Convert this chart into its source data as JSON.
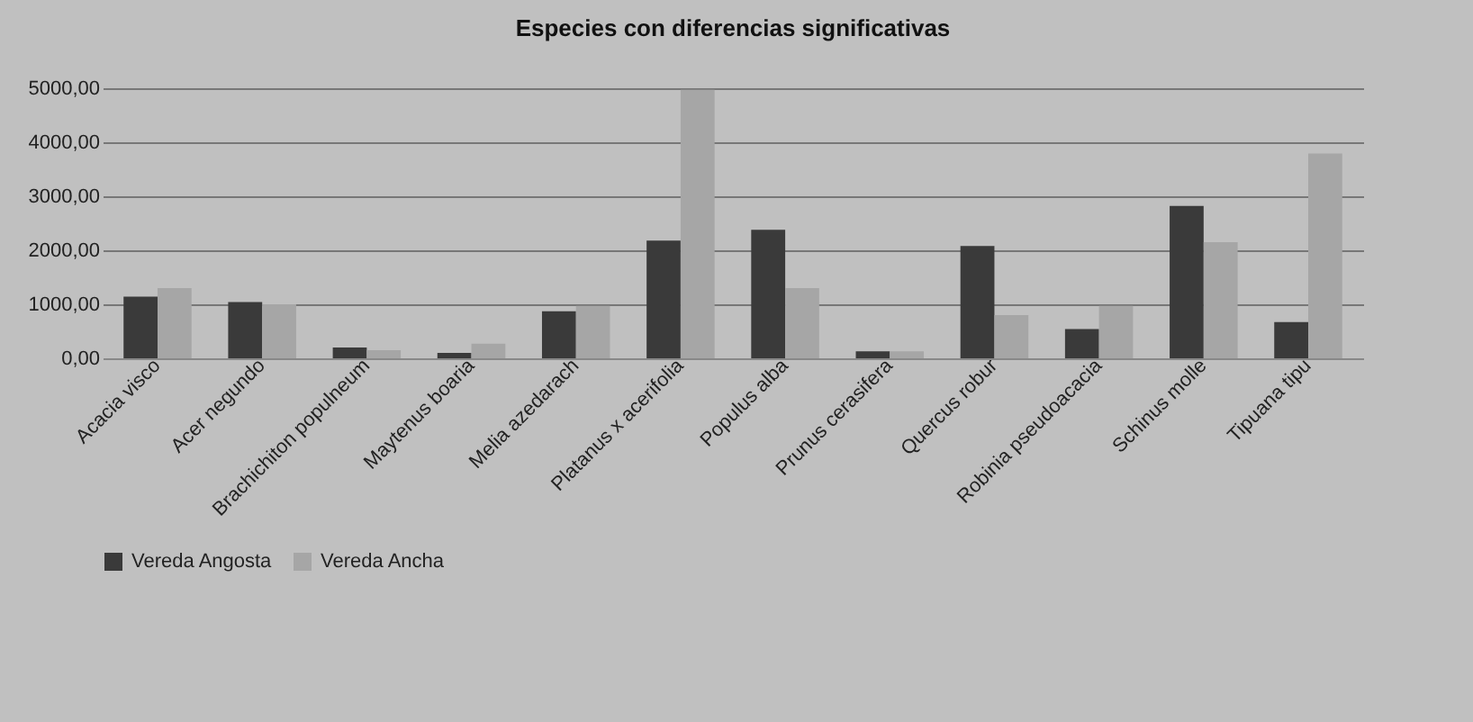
{
  "chart_data": {
    "type": "bar",
    "title": "Especies con diferencias significativas",
    "categories": [
      "Acacia visco",
      "Acer negundo",
      "Brachichiton populneum",
      "Maytenus boaria",
      "Melia azedarach",
      "Platanus x acerifolia",
      "Populus alba",
      "Prunus cerasifera",
      "Quercus robur",
      "Robinia pseudoacacia",
      "Schinus molle",
      "Tipuana tipu"
    ],
    "series": [
      {
        "name": "Vereda Angosta",
        "color": "#3a3a3a",
        "values": [
          1140,
          1040,
          200,
          100,
          870,
          2180,
          2380,
          130,
          2080,
          540,
          2820,
          670
        ]
      },
      {
        "name": "Vereda Ancha",
        "color": "#a6a6a6",
        "values": [
          1300,
          1000,
          150,
          270,
          970,
          4970,
          1300,
          130,
          800,
          970,
          2150,
          3790
        ]
      }
    ],
    "ylim": [
      0,
      5000
    ],
    "yticks": [
      {
        "value": 0,
        "label": "0,00"
      },
      {
        "value": 1000,
        "label": "1000,00"
      },
      {
        "value": 2000,
        "label": "2000,00"
      },
      {
        "value": 3000,
        "label": "3000,00"
      },
      {
        "value": 4000,
        "label": "4000,00"
      },
      {
        "value": 5000,
        "label": "5000,00"
      }
    ],
    "grid": "y",
    "legend": "bottom"
  }
}
